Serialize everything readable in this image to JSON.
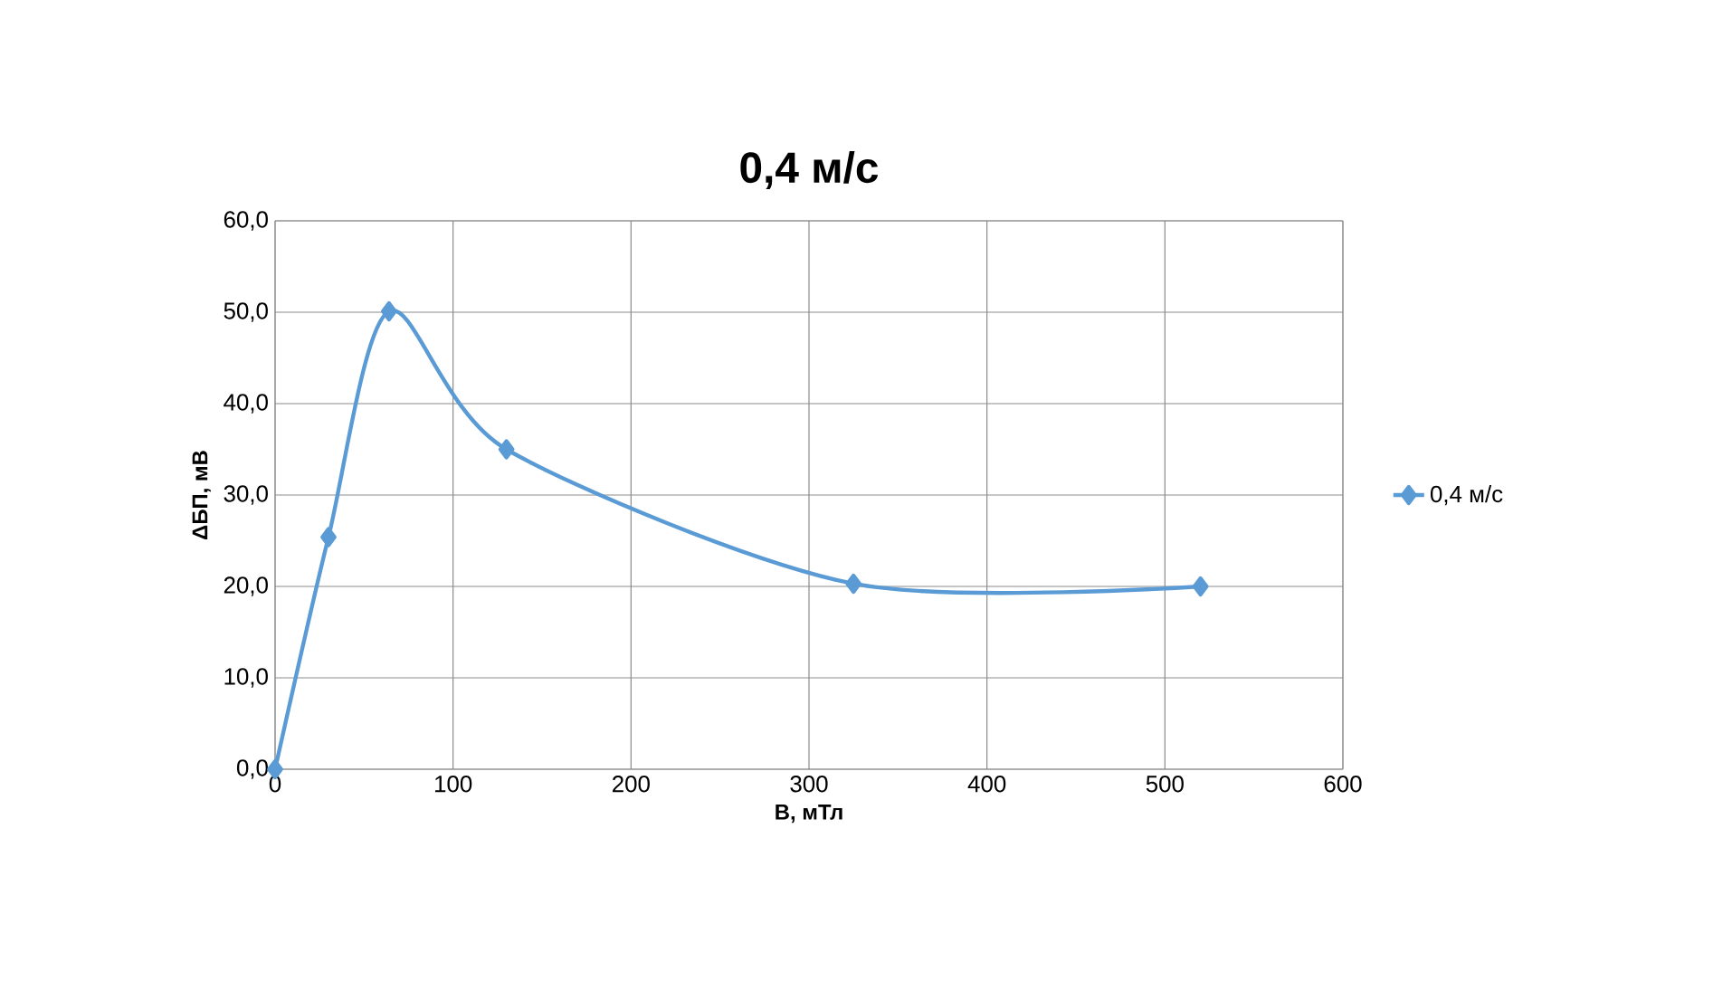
{
  "chart_data": {
    "type": "line",
    "title": "0,4 м/с",
    "xlabel": "B, мТл",
    "ylabel": "ΔБП, мВ",
    "x": [
      0,
      30,
      64,
      130,
      325,
      520
    ],
    "series": [
      {
        "name": "0,4 м/с",
        "color": "#5b9bd5",
        "values": [
          0,
          25.4,
          50.1,
          35,
          20.3,
          20.0
        ]
      }
    ],
    "xlim": [
      0,
      600
    ],
    "xticks": [
      0,
      100,
      200,
      300,
      400,
      500,
      600
    ],
    "ylim": [
      0,
      60
    ],
    "yticks": [
      {
        "value": 0,
        "label": "0,0"
      },
      {
        "value": 10,
        "label": "10,0"
      },
      {
        "value": 20,
        "label": "20,0"
      },
      {
        "value": 30,
        "label": "30,0"
      },
      {
        "value": 40,
        "label": "40,0"
      },
      {
        "value": 50,
        "label": "50,0"
      },
      {
        "value": 60,
        "label": "60,0"
      }
    ],
    "grid": true,
    "legend": "right",
    "marker": "diamond",
    "line_style": "solid"
  }
}
